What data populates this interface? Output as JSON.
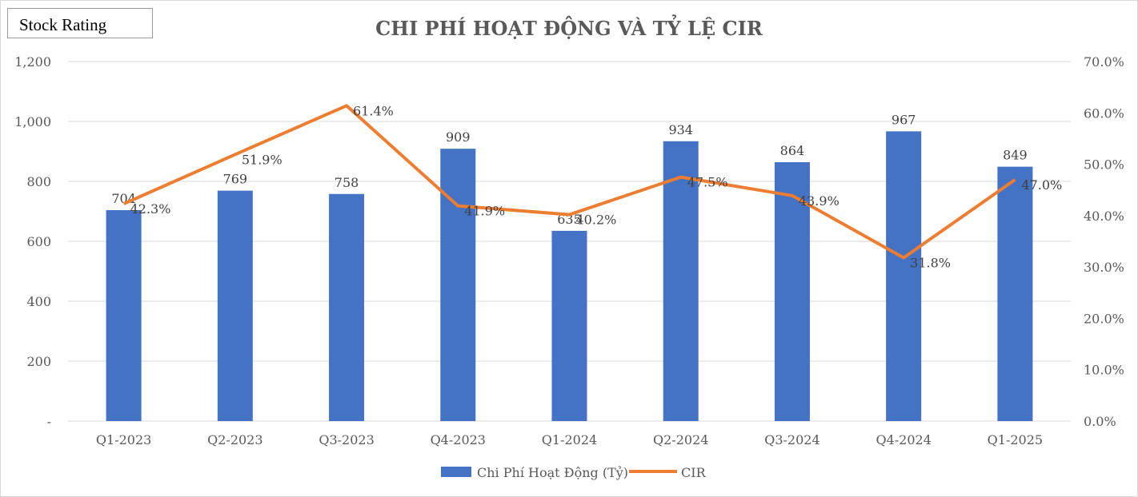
{
  "watermark": "Stock Rating",
  "colors": {
    "bar": "#4472C4",
    "line": "#ED7D31",
    "grid": "#d9d9d9"
  },
  "chart_data": {
    "type": "bar",
    "title": "CHI PHÍ HOẠT ĐỘNG VÀ TỶ LỆ CIR",
    "categories": [
      "Q1-2023",
      "Q2-2023",
      "Q3-2023",
      "Q4-2023",
      "Q1-2024",
      "Q2-2024",
      "Q3-2024",
      "Q4-2024",
      "Q1-2025"
    ],
    "series": [
      {
        "name": "Chi Phí Hoạt Động (Tỷ)",
        "type": "bar",
        "axis": "left",
        "values": [
          704,
          769,
          758,
          909,
          635,
          934,
          864,
          967,
          849
        ],
        "labels": [
          "704",
          "769",
          "758",
          "909",
          "635",
          "934",
          "864",
          "967",
          "849"
        ]
      },
      {
        "name": "CIR",
        "type": "line",
        "axis": "right",
        "values": [
          42.3,
          51.9,
          61.4,
          41.9,
          40.2,
          47.5,
          43.9,
          31.8,
          47.0
        ],
        "labels": [
          "42.3%",
          "51.9%",
          "61.4%",
          "41.9%",
          "40.2%",
          "47.5%",
          "43.9%",
          "31.8%",
          "47.0%"
        ]
      }
    ],
    "y_left": {
      "range": [
        0,
        1200
      ],
      "ticks": [
        0,
        200,
        400,
        600,
        800,
        1000,
        1200
      ],
      "tick_labels": [
        "-",
        "200",
        "400",
        "600",
        "800",
        "1,000",
        "1,200"
      ]
    },
    "y_right": {
      "range": [
        0,
        70
      ],
      "ticks": [
        0,
        10,
        20,
        30,
        40,
        50,
        60,
        70
      ],
      "tick_labels": [
        "0.0%",
        "10.0%",
        "20.0%",
        "30.0%",
        "40.0%",
        "50.0%",
        "60.0%",
        "70.0%"
      ]
    },
    "grid": true,
    "legend": "bottom"
  }
}
